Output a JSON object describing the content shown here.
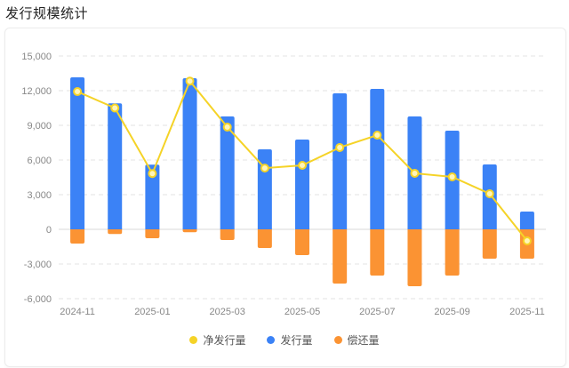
{
  "page": {
    "title": "发行规模统计"
  },
  "colors": {
    "net": "#f5d327",
    "issue": "#3b82f6",
    "repay": "#fb9333",
    "grid": "#e3e3e3"
  },
  "legend": [
    {
      "label": "净发行量",
      "color": "#f5d327",
      "key": "net"
    },
    {
      "label": "发行量",
      "color": "#3b82f6",
      "key": "issue"
    },
    {
      "label": "偿还量",
      "color": "#fb9333",
      "key": "repay"
    }
  ],
  "chart_data": {
    "type": "bar",
    "title": "发行规模统计",
    "xlabel": "",
    "ylabel": "",
    "ylim": [
      -6000,
      15000
    ],
    "yticks": [
      15000,
      12000,
      9000,
      6000,
      3000,
      0,
      -3000,
      -6000
    ],
    "ytick_labels": [
      "15,000",
      "12,000",
      "9,000",
      "6,000",
      "3,000",
      "0",
      "-3,000",
      "-6,000"
    ],
    "grid": true,
    "legend_position": "bottom",
    "categories": [
      "2024-11",
      "2024-12",
      "2025-01",
      "2025-02",
      "2025-03",
      "2025-04",
      "2025-05",
      "2025-06",
      "2025-07",
      "2025-08",
      "2025-09",
      "2025-10",
      "2025-11"
    ],
    "xtick_labels_shown": [
      "2024-11",
      "2025-01",
      "2025-03",
      "2025-05",
      "2025-07",
      "2025-09",
      "2025-11"
    ],
    "series": [
      {
        "name": "发行量",
        "type": "bar",
        "values": [
          13150,
          10900,
          5600,
          13080,
          9770,
          6920,
          7770,
          11770,
          12150,
          9770,
          8540,
          5620,
          1540
        ]
      },
      {
        "name": "偿还量",
        "type": "bar",
        "values": [
          -1230,
          -400,
          -770,
          -250,
          -920,
          -1620,
          -2230,
          -4690,
          -4000,
          -4920,
          -4000,
          -2540,
          -2540
        ]
      },
      {
        "name": "净发行量",
        "type": "line",
        "values": [
          11920,
          10500,
          4830,
          12830,
          8850,
          5300,
          5540,
          7080,
          8150,
          4850,
          4540,
          3080,
          -1000
        ]
      }
    ]
  }
}
